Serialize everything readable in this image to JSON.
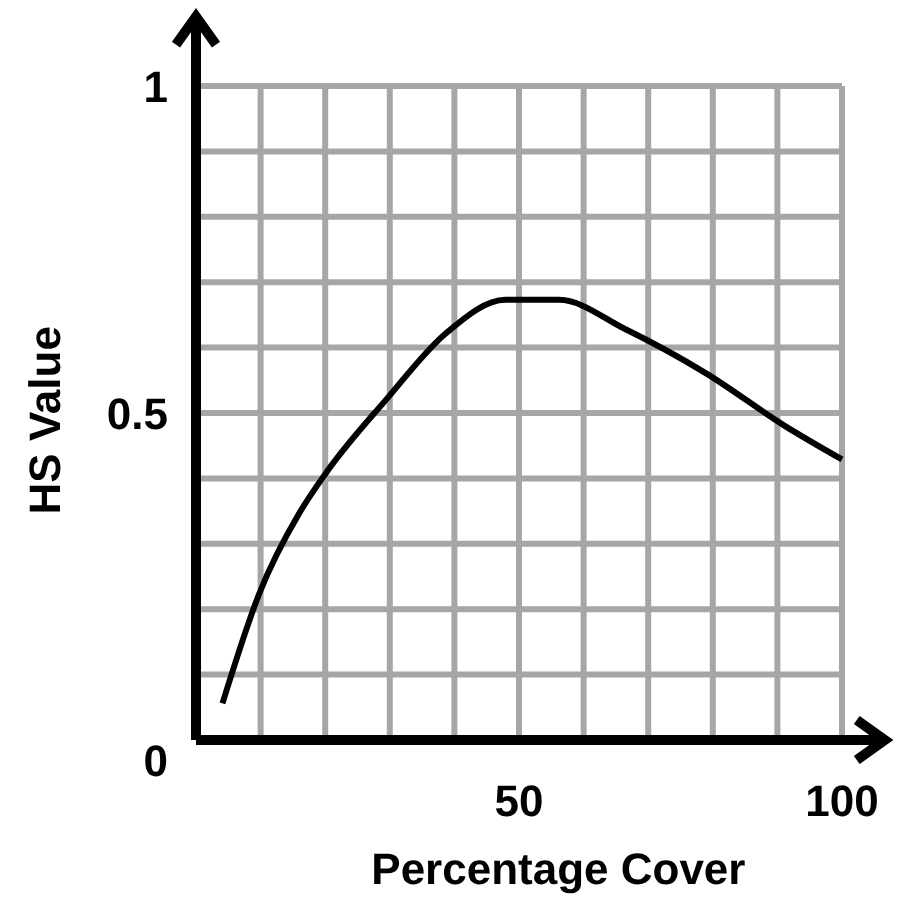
{
  "chart_data": {
    "type": "line",
    "xlabel": "Percentage Cover",
    "ylabel": "HS Value",
    "x": [
      4.1,
      9.8,
      16,
      20.1,
      29.4,
      38.7,
      47.9,
      56.2,
      66.5,
      78.9,
      91.2,
      100
    ],
    "series": [
      {
        "color": "#000000",
        "values": [
          0.056,
          0.224,
          0.347,
          0.408,
          0.52,
          0.622,
          0.673,
          0.673,
          0.628,
          0.561,
          0.48,
          0.429
        ]
      }
    ],
    "xlim": [
      0,
      106
    ],
    "ylim": [
      0,
      1.1
    ],
    "xticks": [
      {
        "value": 0,
        "label": null
      },
      {
        "value": 10,
        "label": null
      },
      {
        "value": 20,
        "label": null
      },
      {
        "value": 30,
        "label": null
      },
      {
        "value": 40,
        "label": null
      },
      50,
      {
        "value": 60,
        "label": null
      },
      {
        "value": 70,
        "label": null
      },
      {
        "value": 80,
        "label": null
      },
      {
        "value": 90,
        "label": null
      },
      100
    ],
    "yticks": [
      0,
      {
        "value": 0.1,
        "label": null
      },
      {
        "value": 0.2,
        "label": null
      },
      {
        "value": 0.3,
        "label": null
      },
      {
        "value": 0.4,
        "label": null
      },
      0.5,
      {
        "value": 0.6,
        "label": null
      },
      {
        "value": 0.7,
        "label": null
      },
      {
        "value": 0.8,
        "label": null
      },
      {
        "value": 0.9,
        "label": null
      },
      1
    ],
    "grid": true,
    "marker": "none",
    "line_style": "solid"
  }
}
